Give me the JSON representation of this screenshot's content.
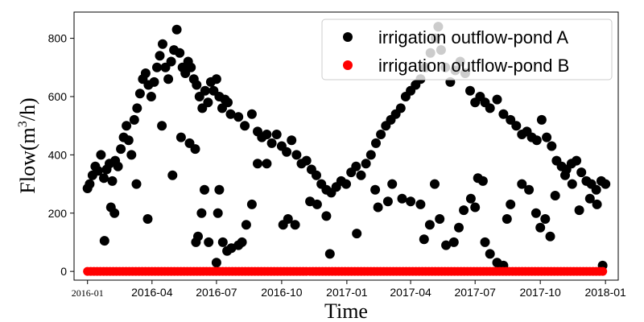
{
  "chart_data": {
    "type": "scatter",
    "title": "",
    "xlabel": "Time",
    "ylabel": "Flow(m",
    "ylabel_sup": "3",
    "ylabel_suffix": "/h)",
    "xlim": [
      "2015-12-13",
      "2018-01-19"
    ],
    "ylim": [
      -30,
      890
    ],
    "x_ticks": [
      "2016-01",
      "2016-04",
      "2016-07",
      "2016-10",
      "2017-01",
      "2017-04",
      "2017-07",
      "2017-10",
      "2018-01"
    ],
    "x_tick_dates": [
      "2016-01-01",
      "2016-04-01",
      "2016-07-01",
      "2016-10-01",
      "2017-01-01",
      "2017-04-01",
      "2017-07-01",
      "2017-10-01",
      "2018-01-01"
    ],
    "y_ticks": [
      0,
      200,
      400,
      600,
      800
    ],
    "grid": false,
    "legend_position": "top-right",
    "series": [
      {
        "name": "irrigation outflow-pond A",
        "color": "#000000",
        "points": [
          [
            "2016-01-01",
            285
          ],
          [
            "2016-01-04",
            300
          ],
          [
            "2016-01-08",
            330
          ],
          [
            "2016-01-12",
            360
          ],
          [
            "2016-01-16",
            345
          ],
          [
            "2016-01-20",
            400
          ],
          [
            "2016-01-24",
            320
          ],
          [
            "2016-01-28",
            350
          ],
          [
            "2016-02-01",
            370
          ],
          [
            "2016-02-05",
            310
          ],
          [
            "2016-02-09",
            380
          ],
          [
            "2016-02-13",
            360
          ],
          [
            "2016-02-17",
            420
          ],
          [
            "2016-02-21",
            460
          ],
          [
            "2016-02-25",
            500
          ],
          [
            "2016-02-28",
            450
          ],
          [
            "2016-03-03",
            400
          ],
          [
            "2016-03-07",
            520
          ],
          [
            "2016-03-11",
            560
          ],
          [
            "2016-03-15",
            610
          ],
          [
            "2016-03-19",
            660
          ],
          [
            "2016-03-23",
            680
          ],
          [
            "2016-03-27",
            640
          ],
          [
            "2016-03-31",
            600
          ],
          [
            "2016-04-04",
            650
          ],
          [
            "2016-04-08",
            700
          ],
          [
            "2016-04-12",
            740
          ],
          [
            "2016-04-16",
            780
          ],
          [
            "2016-04-20",
            700
          ],
          [
            "2016-04-24",
            660
          ],
          [
            "2016-04-28",
            720
          ],
          [
            "2016-05-02",
            760
          ],
          [
            "2016-05-06",
            830
          ],
          [
            "2016-05-10",
            750
          ],
          [
            "2016-05-14",
            700
          ],
          [
            "2016-05-18",
            680
          ],
          [
            "2016-05-22",
            720
          ],
          [
            "2016-05-26",
            700
          ],
          [
            "2016-05-30",
            660
          ],
          [
            "2016-06-03",
            640
          ],
          [
            "2016-06-07",
            600
          ],
          [
            "2016-06-11",
            560
          ],
          [
            "2016-06-15",
            620
          ],
          [
            "2016-06-19",
            580
          ],
          [
            "2016-06-23",
            650
          ],
          [
            "2016-06-27",
            620
          ],
          [
            "2016-07-01",
            660
          ],
          [
            "2016-07-05",
            600
          ],
          [
            "2016-07-09",
            560
          ],
          [
            "2016-07-13",
            590
          ],
          [
            "2016-07-17",
            580
          ],
          [
            "2016-07-21",
            540
          ],
          [
            "2016-08-01",
            530
          ],
          [
            "2016-08-10",
            500
          ],
          [
            "2016-08-20",
            540
          ],
          [
            "2016-08-28",
            480
          ],
          [
            "2016-09-03",
            460
          ],
          [
            "2016-09-10",
            470
          ],
          [
            "2016-09-17",
            440
          ],
          [
            "2016-09-24",
            470
          ],
          [
            "2016-10-01",
            430
          ],
          [
            "2016-10-08",
            410
          ],
          [
            "2016-10-15",
            450
          ],
          [
            "2016-10-22",
            400
          ],
          [
            "2016-10-29",
            370
          ],
          [
            "2016-11-05",
            380
          ],
          [
            "2016-11-12",
            350
          ],
          [
            "2016-11-19",
            330
          ],
          [
            "2016-11-26",
            300
          ],
          [
            "2016-12-03",
            280
          ],
          [
            "2016-12-10",
            270
          ],
          [
            "2016-12-17",
            290
          ],
          [
            "2016-12-24",
            310
          ],
          [
            "2016-12-31",
            300
          ],
          [
            "2017-01-07",
            340
          ],
          [
            "2017-01-14",
            360
          ],
          [
            "2017-01-21",
            330
          ],
          [
            "2017-01-28",
            370
          ],
          [
            "2017-02-04",
            400
          ],
          [
            "2017-02-11",
            440
          ],
          [
            "2017-02-18",
            470
          ],
          [
            "2017-02-25",
            500
          ],
          [
            "2017-03-04",
            520
          ],
          [
            "2017-03-11",
            540
          ],
          [
            "2017-03-18",
            560
          ],
          [
            "2017-03-25",
            600
          ],
          [
            "2017-04-01",
            620
          ],
          [
            "2017-04-08",
            640
          ],
          [
            "2017-04-15",
            660
          ],
          [
            "2017-04-22",
            700
          ],
          [
            "2017-04-29",
            750
          ],
          [
            "2017-05-06",
            800
          ],
          [
            "2017-05-10",
            840
          ],
          [
            "2017-05-14",
            760
          ],
          [
            "2017-05-20",
            700
          ],
          [
            "2017-05-27",
            650
          ],
          [
            "2017-06-03",
            690
          ],
          [
            "2017-06-10",
            720
          ],
          [
            "2017-06-17",
            680
          ],
          [
            "2017-06-24",
            620
          ],
          [
            "2017-07-01",
            580
          ],
          [
            "2017-07-08",
            600
          ],
          [
            "2017-07-15",
            580
          ],
          [
            "2017-07-22",
            560
          ],
          [
            "2017-08-01",
            590
          ],
          [
            "2017-08-10",
            540
          ],
          [
            "2017-08-20",
            520
          ],
          [
            "2017-08-28",
            500
          ],
          [
            "2017-09-05",
            470
          ],
          [
            "2017-09-12",
            480
          ],
          [
            "2017-09-19",
            460
          ],
          [
            "2017-09-26",
            450
          ],
          [
            "2017-10-03",
            520
          ],
          [
            "2017-10-10",
            460
          ],
          [
            "2017-10-17",
            430
          ],
          [
            "2017-10-24",
            380
          ],
          [
            "2017-10-31",
            360
          ],
          [
            "2017-11-07",
            350
          ],
          [
            "2017-11-14",
            370
          ],
          [
            "2017-11-21",
            380
          ],
          [
            "2017-11-28",
            340
          ],
          [
            "2017-12-05",
            310
          ],
          [
            "2017-12-12",
            300
          ],
          [
            "2017-12-19",
            280
          ],
          [
            "2017-12-26",
            310
          ],
          [
            "2018-01-01",
            300
          ],
          [
            "2016-01-25",
            105
          ],
          [
            "2016-02-03",
            220
          ],
          [
            "2016-02-08",
            200
          ],
          [
            "2016-03-10",
            300
          ],
          [
            "2016-03-26",
            180
          ],
          [
            "2016-04-15",
            500
          ],
          [
            "2016-04-30",
            330
          ],
          [
            "2016-05-12",
            460
          ],
          [
            "2016-05-24",
            440
          ],
          [
            "2016-06-01",
            420
          ],
          [
            "2016-06-02",
            100
          ],
          [
            "2016-06-05",
            120
          ],
          [
            "2016-06-10",
            200
          ],
          [
            "2016-06-14",
            280
          ],
          [
            "2016-06-20",
            100
          ],
          [
            "2016-07-01",
            30
          ],
          [
            "2016-07-03",
            200
          ],
          [
            "2016-07-05",
            280
          ],
          [
            "2016-07-10",
            100
          ],
          [
            "2016-07-16",
            70
          ],
          [
            "2016-07-22",
            80
          ],
          [
            "2016-08-01",
            90
          ],
          [
            "2016-08-06",
            100
          ],
          [
            "2016-08-12",
            160
          ],
          [
            "2016-08-20",
            230
          ],
          [
            "2016-08-28",
            370
          ],
          [
            "2016-09-10",
            370
          ],
          [
            "2016-10-03",
            160
          ],
          [
            "2016-10-10",
            180
          ],
          [
            "2016-10-20",
            160
          ],
          [
            "2016-11-10",
            240
          ],
          [
            "2016-11-20",
            230
          ],
          [
            "2016-12-03",
            190
          ],
          [
            "2016-12-08",
            60
          ],
          [
            "2017-01-15",
            130
          ],
          [
            "2017-02-10",
            280
          ],
          [
            "2017-02-14",
            220
          ],
          [
            "2017-02-28",
            240
          ],
          [
            "2017-03-06",
            300
          ],
          [
            "2017-03-20",
            250
          ],
          [
            "2017-04-01",
            240
          ],
          [
            "2017-04-15",
            230
          ],
          [
            "2017-04-20",
            110
          ],
          [
            "2017-04-28",
            160
          ],
          [
            "2017-05-05",
            300
          ],
          [
            "2017-05-12",
            180
          ],
          [
            "2017-05-21",
            90
          ],
          [
            "2017-06-01",
            100
          ],
          [
            "2017-06-08",
            150
          ],
          [
            "2017-06-15",
            210
          ],
          [
            "2017-06-25",
            250
          ],
          [
            "2017-07-01",
            220
          ],
          [
            "2017-07-05",
            320
          ],
          [
            "2017-07-12",
            310
          ],
          [
            "2017-07-15",
            100
          ],
          [
            "2017-07-22",
            60
          ],
          [
            "2017-08-01",
            30
          ],
          [
            "2017-08-10",
            20
          ],
          [
            "2017-08-15",
            180
          ],
          [
            "2017-08-20",
            230
          ],
          [
            "2017-09-05",
            300
          ],
          [
            "2017-09-15",
            280
          ],
          [
            "2017-09-25",
            200
          ],
          [
            "2017-10-01",
            150
          ],
          [
            "2017-10-08",
            180
          ],
          [
            "2017-10-15",
            120
          ],
          [
            "2017-10-22",
            260
          ],
          [
            "2017-11-05",
            330
          ],
          [
            "2017-11-15",
            300
          ],
          [
            "2017-11-25",
            210
          ],
          [
            "2017-12-10",
            250
          ],
          [
            "2017-12-20",
            230
          ],
          [
            "2017-12-28",
            20
          ]
        ]
      },
      {
        "name": "irrigation outflow-pond B",
        "color": "#ff0000",
        "points": [
          [
            "2016-01-01",
            0
          ],
          [
            "2016-04-01",
            0
          ],
          [
            "2016-07-01",
            0
          ],
          [
            "2016-10-01",
            0
          ],
          [
            "2017-01-01",
            0
          ],
          [
            "2017-04-01",
            0
          ],
          [
            "2017-07-01",
            0
          ],
          [
            "2017-10-01",
            0
          ],
          [
            "2018-01-01",
            0
          ]
        ]
      }
    ]
  }
}
